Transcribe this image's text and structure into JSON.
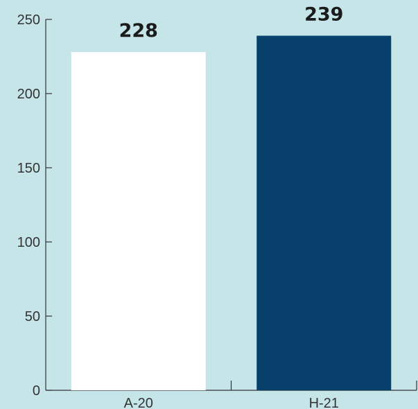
{
  "chart_data": {
    "type": "bar",
    "categories": [
      "A-20",
      "H-21"
    ],
    "values": [
      228,
      239
    ],
    "data_labels": [
      "228",
      "239"
    ],
    "title": "",
    "xlabel": "",
    "ylabel": "",
    "ylim": [
      0,
      250
    ],
    "yticks": [
      0,
      50,
      100,
      150,
      200,
      250
    ],
    "ytick_labels": [
      "0",
      "50",
      "100",
      "150",
      "200",
      "250"
    ],
    "grid": false,
    "legend": "none",
    "colors": {
      "background": "#c5e5e8",
      "bars": [
        "#ffffff",
        "#07406a"
      ],
      "axis": "#333333"
    }
  }
}
